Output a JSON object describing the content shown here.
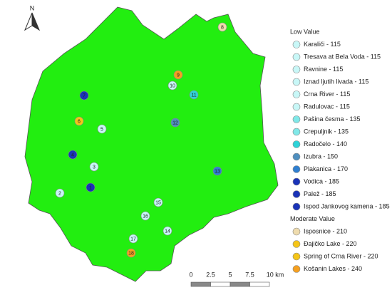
{
  "north": "N",
  "points": [
    {
      "label": "1",
      "color": "#1a33b8"
    },
    {
      "label": "2",
      "color": "#c8f7f7"
    },
    {
      "label": "3",
      "color": "#c8f7f7"
    },
    {
      "label": "4",
      "color": "#1a33b8"
    },
    {
      "label": "5",
      "color": "#c8f7f7"
    },
    {
      "label": "6",
      "color": "#f5c518"
    },
    {
      "label": "7",
      "color": "#1a33b8"
    },
    {
      "label": "8",
      "color": "#efdcae"
    },
    {
      "label": "9",
      "color": "#f5a020"
    },
    {
      "label": "10",
      "color": "#c8f7f7"
    },
    {
      "label": "11",
      "color": "#2ed3d8"
    },
    {
      "label": "12",
      "color": "#4f8fbf"
    },
    {
      "label": "13",
      "color": "#2f7fd0"
    },
    {
      "label": "14",
      "color": "#c8f7f7"
    },
    {
      "label": "15",
      "color": "#c8f7f7"
    },
    {
      "label": "16",
      "color": "#c8f7f7"
    },
    {
      "label": "17",
      "color": "#c8f7f7"
    },
    {
      "label": "18",
      "color": "#f5a020"
    }
  ],
  "legend": [
    {
      "title": "Low Value",
      "items": [
        {
          "label": "Karaliči - 115",
          "color": "#c8f7f7"
        },
        {
          "label": "Tresava at Bela Voda - 115",
          "color": "#c8f7f7"
        },
        {
          "label": "Ravnine - 115",
          "color": "#c8f7f7"
        },
        {
          "label": "Iznad ljutih livada - 115",
          "color": "#c8f7f7"
        },
        {
          "label": "Crna River - 115",
          "color": "#c8f7f7"
        },
        {
          "label": "Radulovac - 115",
          "color": "#c8f7f7"
        },
        {
          "label": "Pašina česma - 135",
          "color": "#80e8e8"
        },
        {
          "label": "Crepuljnik - 135",
          "color": "#80e8e8"
        },
        {
          "label": "Radočelo - 140",
          "color": "#2ed3d8"
        },
        {
          "label": "Izubra - 150",
          "color": "#4f8fbf"
        },
        {
          "label": "Plakanica - 170",
          "color": "#2f7fd0"
        },
        {
          "label": "Vodica - 185",
          "color": "#1a33b8"
        },
        {
          "label": "Palež - 185",
          "color": "#1a33b8"
        },
        {
          "label": "Ispod Jankovog kamena - 185",
          "color": "#1a33b8"
        }
      ]
    },
    {
      "title": "Moderate Value",
      "items": [
        {
          "label": "Isposnice - 210",
          "color": "#efdcae"
        },
        {
          "label": "Đajičko Lake - 220",
          "color": "#f5c518"
        },
        {
          "label": "Spring of Crna River - 220",
          "color": "#f5c518"
        },
        {
          "label": "Košanin Lakes - 240",
          "color": "#f5a020"
        }
      ]
    }
  ],
  "scale_bar": [
    "0",
    "2.5",
    "5",
    "7.5",
    "10 km"
  ]
}
